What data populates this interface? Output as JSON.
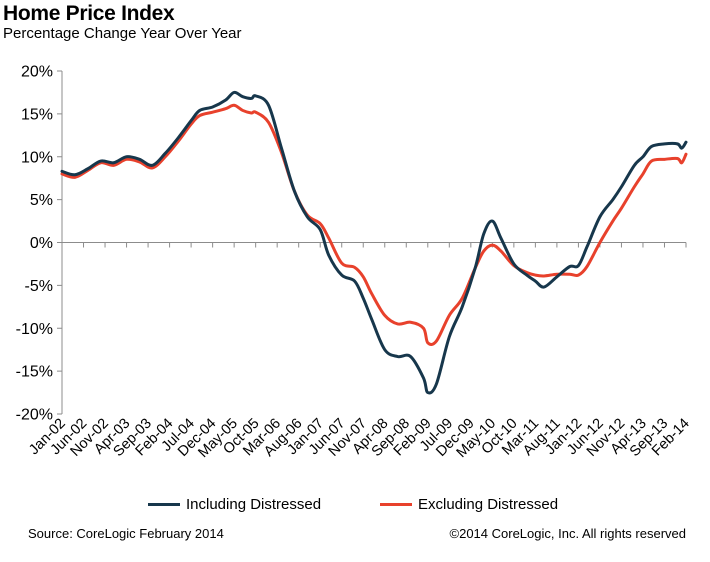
{
  "header": {
    "title": "Home Price Index",
    "subtitle": "Percentage Change Year Over Year"
  },
  "footer": {
    "source": "Source: CoreLogic  February  2014",
    "copyright": "©2014 CoreLogic, Inc. All rights reserved"
  },
  "chart_data": {
    "type": "line",
    "title": "Home Price Index",
    "subtitle": "Percentage Change Year Over Year",
    "xlabel": "",
    "ylabel": "",
    "ylim": [
      -20,
      20
    ],
    "y_ticks": [
      20,
      15,
      10,
      5,
      0,
      -5,
      -10,
      -15,
      -20
    ],
    "y_tick_labels": [
      "20%",
      "15%",
      "10%",
      "5%",
      "0%",
      "-5%",
      "-10%",
      "-15%",
      "-20%"
    ],
    "x_ticks": [
      "Jan-02",
      "Jun-02",
      "Nov-02",
      "Apr-03",
      "Sep-03",
      "Feb-04",
      "Jul-04",
      "Dec-04",
      "May-05",
      "Oct-05",
      "Mar-06",
      "Aug-06",
      "Jan-07",
      "Jun-07",
      "Nov-07",
      "Apr-08",
      "Sep-08",
      "Feb-09",
      "Jul-09",
      "Dec-09",
      "May-10",
      "Oct-10",
      "Mar-11",
      "Aug-11",
      "Jan-12",
      "Jun-12",
      "Nov-12",
      "Apr-13",
      "Sep-13",
      "Feb-14"
    ],
    "x_range": [
      "Jan-02",
      "Feb-14"
    ],
    "grid": false,
    "legend_placement": "bottom",
    "series": [
      {
        "name": "Including Distressed",
        "color": "#17374c",
        "points": [
          [
            "Jan-02",
            8.3
          ],
          [
            "Apr-02",
            7.9
          ],
          [
            "Jul-02",
            8.6
          ],
          [
            "Oct-02",
            9.5
          ],
          [
            "Jan-03",
            9.3
          ],
          [
            "Apr-03",
            10.0
          ],
          [
            "Jul-03",
            9.7
          ],
          [
            "Oct-03",
            9.0
          ],
          [
            "Jan-04",
            10.4
          ],
          [
            "Apr-04",
            12.2
          ],
          [
            "Jul-04",
            14.2
          ],
          [
            "Sep-04",
            15.4
          ],
          [
            "Dec-04",
            15.8
          ],
          [
            "Mar-05",
            16.6
          ],
          [
            "May-05",
            17.5
          ],
          [
            "Jul-05",
            17.0
          ],
          [
            "Sep-05",
            16.8
          ],
          [
            "Oct-05",
            17.1
          ],
          [
            "Jan-06",
            16.0
          ],
          [
            "Apr-06",
            11.0
          ],
          [
            "Jul-06",
            6.0
          ],
          [
            "Oct-06",
            3.0
          ],
          [
            "Jan-07",
            1.5
          ],
          [
            "Mar-07",
            -1.5
          ],
          [
            "Jun-07",
            -3.8
          ],
          [
            "Sep-07",
            -4.5
          ],
          [
            "Nov-07",
            -6.5
          ],
          [
            "Jan-08",
            -9.0
          ],
          [
            "Apr-08",
            -12.5
          ],
          [
            "Jul-08",
            -13.3
          ],
          [
            "Oct-08",
            -13.3
          ],
          [
            "Jan-09",
            -15.8
          ],
          [
            "Feb-09",
            -17.5
          ],
          [
            "Apr-09",
            -16.5
          ],
          [
            "Jul-09",
            -11.0
          ],
          [
            "Oct-09",
            -7.5
          ],
          [
            "Jan-10",
            -3.0
          ],
          [
            "Mar-10",
            1.0
          ],
          [
            "May-10",
            2.5
          ],
          [
            "Jul-10",
            0.5
          ],
          [
            "Oct-10",
            -2.5
          ],
          [
            "Jan-11",
            -3.8
          ],
          [
            "Mar-11",
            -4.5
          ],
          [
            "May-11",
            -5.2
          ],
          [
            "Aug-11",
            -4.0
          ],
          [
            "Nov-11",
            -2.8
          ],
          [
            "Jan-12",
            -2.7
          ],
          [
            "Mar-12",
            -0.5
          ],
          [
            "Jun-12",
            3.0
          ],
          [
            "Sep-12",
            5.0
          ],
          [
            "Nov-12",
            6.5
          ],
          [
            "Feb-13",
            9.0
          ],
          [
            "Apr-13",
            10.0
          ],
          [
            "Jun-13",
            11.2
          ],
          [
            "Sep-13",
            11.5
          ],
          [
            "Dec-13",
            11.5
          ],
          [
            "Jan-14",
            11.0
          ],
          [
            "Feb-14",
            11.7
          ]
        ]
      },
      {
        "name": "Excluding Distressed",
        "color": "#e8412c",
        "points": [
          [
            "Jan-02",
            8.0
          ],
          [
            "Apr-02",
            7.6
          ],
          [
            "Jul-02",
            8.4
          ],
          [
            "Oct-02",
            9.3
          ],
          [
            "Jan-03",
            9.0
          ],
          [
            "Apr-03",
            9.7
          ],
          [
            "Jul-03",
            9.4
          ],
          [
            "Oct-03",
            8.7
          ],
          [
            "Jan-04",
            10.0
          ],
          [
            "Apr-04",
            11.8
          ],
          [
            "Jul-04",
            13.8
          ],
          [
            "Sep-04",
            14.8
          ],
          [
            "Dec-04",
            15.2
          ],
          [
            "Mar-05",
            15.6
          ],
          [
            "May-05",
            16.0
          ],
          [
            "Jul-05",
            15.4
          ],
          [
            "Sep-05",
            15.1
          ],
          [
            "Oct-05",
            15.2
          ],
          [
            "Jan-06",
            14.0
          ],
          [
            "Apr-06",
            10.5
          ],
          [
            "Jul-06",
            6.0
          ],
          [
            "Oct-06",
            3.2
          ],
          [
            "Jan-07",
            2.2
          ],
          [
            "Mar-07",
            0.5
          ],
          [
            "Jun-07",
            -2.4
          ],
          [
            "Sep-07",
            -2.9
          ],
          [
            "Nov-07",
            -4.0
          ],
          [
            "Jan-08",
            -6.0
          ],
          [
            "Apr-08",
            -8.5
          ],
          [
            "Jul-08",
            -9.5
          ],
          [
            "Oct-08",
            -9.3
          ],
          [
            "Jan-09",
            -10.0
          ],
          [
            "Feb-09",
            -11.7
          ],
          [
            "Apr-09",
            -11.5
          ],
          [
            "Jul-09",
            -8.5
          ],
          [
            "Oct-09",
            -6.5
          ],
          [
            "Jan-10",
            -3.0
          ],
          [
            "Mar-10",
            -1.0
          ],
          [
            "May-10",
            -0.3
          ],
          [
            "Jul-10",
            -1.0
          ],
          [
            "Oct-10",
            -2.7
          ],
          [
            "Jan-11",
            -3.5
          ],
          [
            "Mar-11",
            -3.8
          ],
          [
            "May-11",
            -3.9
          ],
          [
            "Aug-11",
            -3.7
          ],
          [
            "Nov-11",
            -3.7
          ],
          [
            "Jan-12",
            -3.8
          ],
          [
            "Mar-12",
            -2.8
          ],
          [
            "Jun-12",
            0.0
          ],
          [
            "Sep-12",
            2.5
          ],
          [
            "Nov-12",
            4.0
          ],
          [
            "Feb-13",
            6.5
          ],
          [
            "Apr-13",
            8.0
          ],
          [
            "Jun-13",
            9.5
          ],
          [
            "Sep-13",
            9.7
          ],
          [
            "Dec-13",
            9.8
          ],
          [
            "Jan-14",
            9.3
          ],
          [
            "Feb-14",
            10.3
          ]
        ]
      }
    ]
  }
}
